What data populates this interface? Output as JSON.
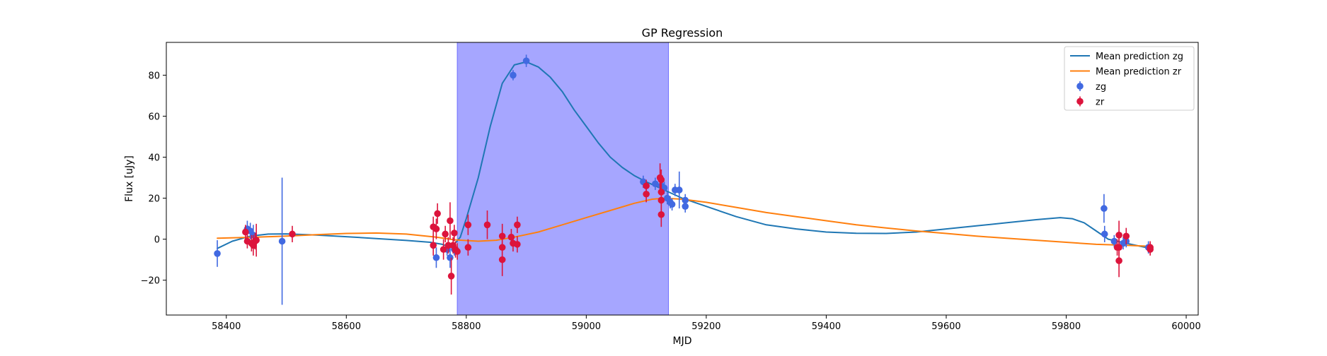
{
  "chart_data": {
    "type": "scatter",
    "title": "GP Regression",
    "xlabel": "MJD",
    "ylabel": "Flux [uJy]",
    "xlim": [
      58300,
      60020
    ],
    "ylim": [
      -37,
      96
    ],
    "xticks": [
      58400,
      58600,
      58800,
      59000,
      59200,
      59400,
      59600,
      59800,
      60000
    ],
    "yticks": [
      -20,
      0,
      20,
      40,
      60,
      80
    ],
    "grid": false,
    "legend_position": "top-right",
    "shaded_region": {
      "x0": 58785,
      "x1": 59137,
      "color": "#a6a6ff"
    },
    "series": [
      {
        "name": "Mean prediction zg",
        "kind": "line",
        "color": "#1f77b4",
        "points": [
          [
            58385,
            -4.5
          ],
          [
            58410,
            -1
          ],
          [
            58440,
            1.5
          ],
          [
            58470,
            2.5
          ],
          [
            58500,
            2.6
          ],
          [
            58550,
            2
          ],
          [
            58600,
            1.2
          ],
          [
            58650,
            0.3
          ],
          [
            58700,
            -0.6
          ],
          [
            58740,
            -1.5
          ],
          [
            58760,
            -2.5
          ],
          [
            58770,
            -3.5
          ],
          [
            58780,
            -2.5
          ],
          [
            58790,
            1
          ],
          [
            58800,
            10
          ],
          [
            58820,
            30
          ],
          [
            58840,
            55
          ],
          [
            58860,
            76
          ],
          [
            58880,
            85
          ],
          [
            58900,
            86.5
          ],
          [
            58920,
            84
          ],
          [
            58940,
            79
          ],
          [
            58960,
            72
          ],
          [
            58980,
            63
          ],
          [
            59000,
            55
          ],
          [
            59020,
            47
          ],
          [
            59040,
            40
          ],
          [
            59060,
            35
          ],
          [
            59080,
            31
          ],
          [
            59100,
            28
          ],
          [
            59130,
            24
          ],
          [
            59160,
            20
          ],
          [
            59200,
            16
          ],
          [
            59250,
            11
          ],
          [
            59300,
            7
          ],
          [
            59350,
            5
          ],
          [
            59400,
            3.5
          ],
          [
            59450,
            2.9
          ],
          [
            59500,
            2.8
          ],
          [
            59550,
            3.5
          ],
          [
            59600,
            5
          ],
          [
            59650,
            6.5
          ],
          [
            59700,
            8
          ],
          [
            59750,
            9.5
          ],
          [
            59790,
            10.5
          ],
          [
            59810,
            10
          ],
          [
            59830,
            8
          ],
          [
            59850,
            4
          ],
          [
            59870,
            0
          ],
          [
            59900,
            -2
          ],
          [
            59940,
            -4.5
          ]
        ]
      },
      {
        "name": "Mean prediction zr",
        "kind": "line",
        "color": "#ff7f0e",
        "points": [
          [
            58385,
            0.5
          ],
          [
            58450,
            1
          ],
          [
            58500,
            1.5
          ],
          [
            58550,
            2.2
          ],
          [
            58600,
            2.8
          ],
          [
            58650,
            3
          ],
          [
            58700,
            2.5
          ],
          [
            58750,
            1
          ],
          [
            58780,
            -0.3
          ],
          [
            58820,
            -1
          ],
          [
            58850,
            -0.5
          ],
          [
            58880,
            1
          ],
          [
            58920,
            3.5
          ],
          [
            58960,
            7
          ],
          [
            59000,
            10.5
          ],
          [
            59040,
            14
          ],
          [
            59080,
            17.5
          ],
          [
            59110,
            19.5
          ],
          [
            59130,
            20
          ],
          [
            59160,
            19.5
          ],
          [
            59200,
            18
          ],
          [
            59250,
            15.5
          ],
          [
            59300,
            13
          ],
          [
            59350,
            11
          ],
          [
            59400,
            9
          ],
          [
            59450,
            7
          ],
          [
            59500,
            5.5
          ],
          [
            59550,
            4
          ],
          [
            59600,
            2.8
          ],
          [
            59650,
            1.5
          ],
          [
            59700,
            0.5
          ],
          [
            59750,
            -0.5
          ],
          [
            59800,
            -1.5
          ],
          [
            59850,
            -2.5
          ],
          [
            59900,
            -3
          ],
          [
            59940,
            -3.5
          ]
        ]
      },
      {
        "name": "zg",
        "kind": "errorbar",
        "color": "#4169e1",
        "points": [
          [
            58385,
            -7,
            6.5
          ],
          [
            58435,
            5,
            4
          ],
          [
            58440,
            4,
            4
          ],
          [
            58445,
            2,
            5
          ],
          [
            58493,
            -1,
            31
          ],
          [
            58750,
            -9,
            5
          ],
          [
            58768,
            -5,
            3
          ],
          [
            58773,
            -9,
            5
          ],
          [
            58780,
            -5,
            3
          ],
          [
            58878,
            80,
            2.5
          ],
          [
            58900,
            87,
            3
          ],
          [
            59095,
            28,
            3
          ],
          [
            59115,
            27,
            3
          ],
          [
            59125,
            26,
            3
          ],
          [
            59130,
            25,
            3
          ],
          [
            59135,
            20,
            3
          ],
          [
            59140,
            18,
            3
          ],
          [
            59143,
            17,
            3
          ],
          [
            59148,
            24,
            3
          ],
          [
            59155,
            24,
            9
          ],
          [
            59165,
            19,
            3
          ],
          [
            59165,
            16,
            3
          ],
          [
            59863,
            15,
            7
          ],
          [
            59864,
            2.5,
            4
          ],
          [
            59880,
            -1,
            3
          ],
          [
            59895,
            -2,
            3
          ],
          [
            59900,
            -1,
            3
          ],
          [
            59937,
            -4,
            3
          ]
        ]
      },
      {
        "name": "zr",
        "kind": "errorbar",
        "color": "#dc143c",
        "points": [
          [
            58432,
            3.5,
            3.5
          ],
          [
            58435,
            -1,
            3.5
          ],
          [
            58442,
            -2,
            4
          ],
          [
            58445,
            -3,
            5
          ],
          [
            58448,
            -1,
            4
          ],
          [
            58450,
            -0.5,
            8
          ],
          [
            58510,
            2.5,
            4
          ],
          [
            58745,
            6,
            5
          ],
          [
            58745,
            -3,
            5
          ],
          [
            58752,
            12.5,
            5
          ],
          [
            58750,
            5,
            5
          ],
          [
            58762,
            -5,
            5
          ],
          [
            58765,
            2.5,
            4
          ],
          [
            58770,
            -3,
            4
          ],
          [
            58773,
            9,
            9
          ],
          [
            58775,
            -18,
            9
          ],
          [
            58778,
            -3,
            4
          ],
          [
            58780,
            3,
            4
          ],
          [
            58782,
            -5,
            4
          ],
          [
            58785,
            -6,
            4
          ],
          [
            58803,
            7,
            5
          ],
          [
            58803,
            -4,
            4
          ],
          [
            58835,
            7,
            7
          ],
          [
            58860,
            1.5,
            6
          ],
          [
            58860,
            -4,
            6
          ],
          [
            58860,
            -10,
            8
          ],
          [
            58875,
            1,
            4
          ],
          [
            58878,
            -2,
            4
          ],
          [
            58885,
            7,
            4
          ],
          [
            58885,
            -2.5,
            4
          ],
          [
            59100,
            26,
            3
          ],
          [
            59100,
            22,
            4
          ],
          [
            59123,
            30,
            7
          ],
          [
            59125,
            29,
            5
          ],
          [
            59125,
            23,
            4
          ],
          [
            59125,
            19,
            5
          ],
          [
            59125,
            12,
            6
          ],
          [
            59885,
            -4,
            4
          ],
          [
            59888,
            -4,
            4
          ],
          [
            59888,
            2,
            7
          ],
          [
            59888,
            -10.5,
            8
          ],
          [
            59900,
            1.5,
            4
          ],
          [
            59940,
            -5,
            3
          ],
          [
            59940,
            -4,
            3
          ]
        ]
      }
    ]
  }
}
